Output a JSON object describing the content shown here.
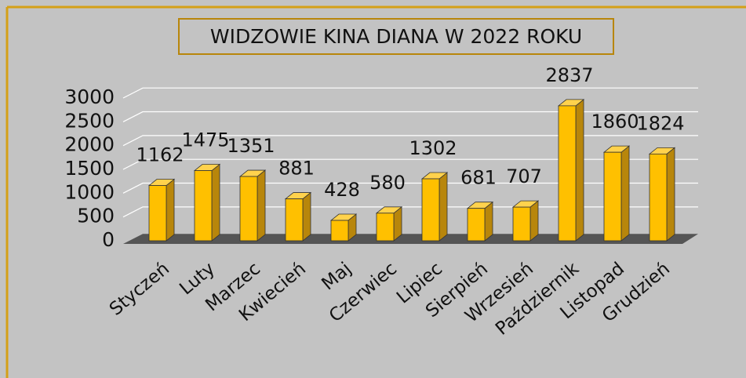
{
  "chart_data": {
    "type": "bar",
    "title": "WIDZOWIE KINA DIANA W 2022 ROKU",
    "categories": [
      "Styczeń",
      "Luty",
      "Marzec",
      "Kwiecień",
      "Maj",
      "Czerwiec",
      "Lipiec",
      "Sierpień",
      "Wrzesień",
      "Październik",
      "Listopad",
      "Grudzień"
    ],
    "values": [
      1162,
      1475,
      1351,
      881,
      428,
      580,
      1302,
      681,
      707,
      2837,
      1860,
      1824
    ],
    "color": "#ffc000",
    "ylim": [
      0,
      3000
    ],
    "yticks": [
      0,
      500,
      1000,
      1500,
      2000,
      2500,
      3000
    ],
    "grid": true
  }
}
